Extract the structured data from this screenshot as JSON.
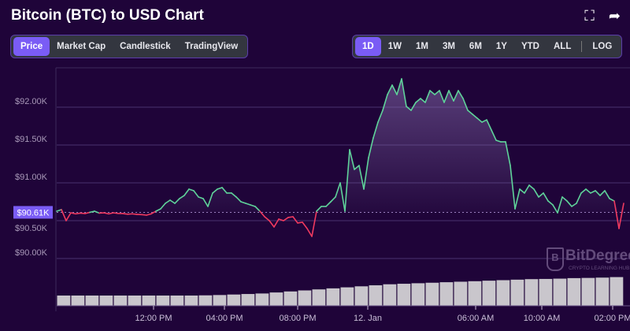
{
  "header": {
    "title": "Bitcoin (BTC) to USD Chart",
    "icons": [
      "fullscreen-icon",
      "share-icon"
    ]
  },
  "chart_tabs": [
    {
      "label": "Price",
      "active": true
    },
    {
      "label": "Market Cap"
    },
    {
      "label": "Candlestick"
    },
    {
      "label": "TradingView"
    }
  ],
  "range_tabs": [
    {
      "label": "1D",
      "active": true
    },
    {
      "label": "1W"
    },
    {
      "label": "1M"
    },
    {
      "label": "3M"
    },
    {
      "label": "6M"
    },
    {
      "label": "1Y"
    },
    {
      "label": "YTD"
    },
    {
      "label": "ALL"
    }
  ],
  "log_label": "LOG",
  "watermark": {
    "name": "BitDegree",
    "tagline": "CRYPTO LEARNING HUB"
  },
  "colors": {
    "background": "#1f0439",
    "up": "#5fd39a",
    "down": "#f03a5f",
    "accent": "#7a5cf5",
    "volume": "#c9c6cc"
  },
  "chart_data": {
    "type": "line",
    "title": "",
    "ylim": [
      89500,
      92500
    ],
    "yticks": [
      {
        "value": 92000,
        "label": "$92.00K"
      },
      {
        "value": 91500,
        "label": "$91.50K"
      },
      {
        "value": 91000,
        "label": "$91.00K"
      },
      {
        "value": 90500,
        "label": "$90.50K"
      },
      {
        "value": 90000,
        "label": "$90.00K"
      }
    ],
    "xticks": [
      "12:00 PM",
      "04:00 PM",
      "08:00 PM",
      "12. Jan",
      "06:00 AM",
      "10:00 AM",
      "02:00 PM"
    ],
    "reference_price": 90610,
    "reference_label": "$90.61K",
    "price": [
      90625,
      90646,
      90500,
      90604,
      90590,
      90600,
      90594,
      90610,
      90625,
      90600,
      90604,
      90590,
      90604,
      90595,
      90594,
      90585,
      90590,
      90583,
      90580,
      90573,
      90590,
      90625,
      90656,
      90729,
      90771,
      90729,
      90792,
      90833,
      90917,
      90896,
      90813,
      90792,
      90688,
      90865,
      90917,
      90938,
      90865,
      90865,
      90813,
      90750,
      90729,
      90708,
      90688,
      90625,
      90552,
      90500,
      90417,
      90521,
      90500,
      90542,
      90552,
      90469,
      90479,
      90396,
      90292,
      90625,
      90688,
      90688,
      90750,
      90813,
      91000,
      90625,
      91438,
      91177,
      91229,
      90917,
      91333,
      91594,
      91802,
      91958,
      92167,
      92292,
      92167,
      92375,
      92010,
      91958,
      92063,
      92115,
      92063,
      92219,
      92167,
      92219,
      92063,
      92219,
      92083,
      92219,
      92115,
      91958,
      91906,
      91854,
      91802,
      91833,
      91698,
      91563,
      91542,
      91542,
      91229,
      90656,
      90917,
      90865,
      90969,
      90917,
      90813,
      90865,
      90760,
      90708,
      90604,
      90813,
      90760,
      90688,
      90729,
      90865,
      90917,
      90865,
      90896,
      90833,
      90896,
      90792,
      90760,
      90396,
      90729
    ],
    "volume": [
      1.0,
      1.0,
      1.0,
      1.0,
      1.0,
      1.0,
      1.0,
      1.0,
      1.0,
      1.0,
      1.02,
      1.05,
      1.1,
      1.15,
      1.2,
      1.3,
      1.4,
      1.5,
      1.6,
      1.7,
      1.8,
      1.9,
      2.0,
      2.1,
      2.15,
      2.2,
      2.25,
      2.3,
      2.35,
      2.4,
      2.45,
      2.5,
      2.55,
      2.6,
      2.62,
      2.65,
      2.7,
      2.72,
      2.75,
      2.8
    ]
  }
}
